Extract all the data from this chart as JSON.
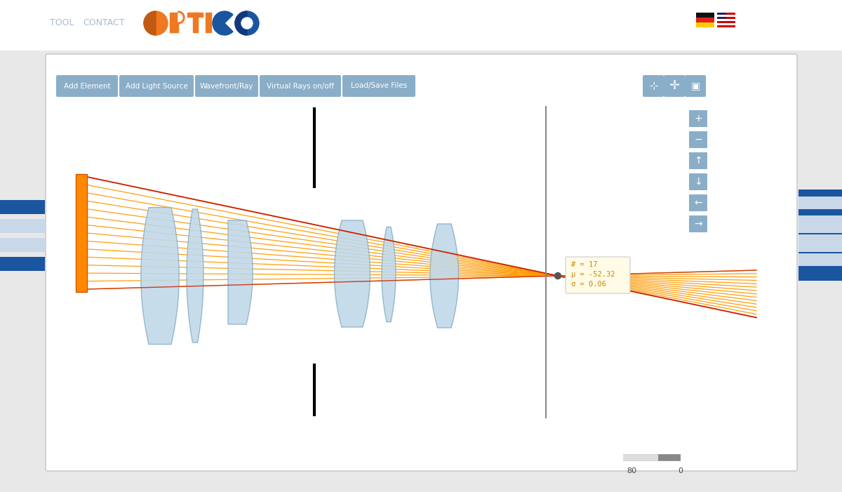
{
  "bg_color": "#e8e8e8",
  "panel_bg": "#ffffff",
  "panel_border": "#cccccc",
  "header_bg": "#ffffff",
  "nav_text_color": "#aabbcc",
  "logo_orange": "#f07820",
  "logo_orange_dark": "#c05a10",
  "logo_blue": "#1a55a0",
  "logo_blue_dark": "#123880",
  "btn_bg": "#8aaec8",
  "btn_text": "#ffffff",
  "btn_labels": [
    "Add Element",
    "Add Light Source",
    "Wavefront/Ray",
    "Virtual Rays on/off",
    "Load/Save Files"
  ],
  "btn_x": [
    82,
    172,
    280,
    372,
    490
  ],
  "btn_w": [
    84,
    102,
    86,
    112,
    100
  ],
  "toolbar_icon_bg": "#8aaec8",
  "side_stripe_blue": "#1a55a0",
  "side_stripe_light": "#c8d8e8",
  "ray_orange": "#ff9900",
  "ray_red": "#cc2200",
  "lens_fill": "#c0d8e8",
  "lens_stroke": "#88b0c8",
  "aperture_color": "#111111",
  "source_orange": "#ff8800",
  "focal_marker": "#888888",
  "tooltip_bg": "#fffbe6",
  "tooltip_border": "#cccccc",
  "tooltip_text_color": "#cc8800",
  "scale_bar_dark": "#888888",
  "scale_bar_light": "#dddddd",
  "nav_links": [
    "TOOL",
    "CONTACT"
  ],
  "tooltip_lines": [
    "# = 17",
    "μ = -52.32",
    "σ = 0.06"
  ],
  "scale_labels": [
    "80",
    "0"
  ],
  "side_btns": [
    "+",
    "−",
    "↑",
    "↓",
    "←",
    "→"
  ],
  "side_btn_y": [
    158,
    188,
    218,
    248,
    278,
    308
  ]
}
